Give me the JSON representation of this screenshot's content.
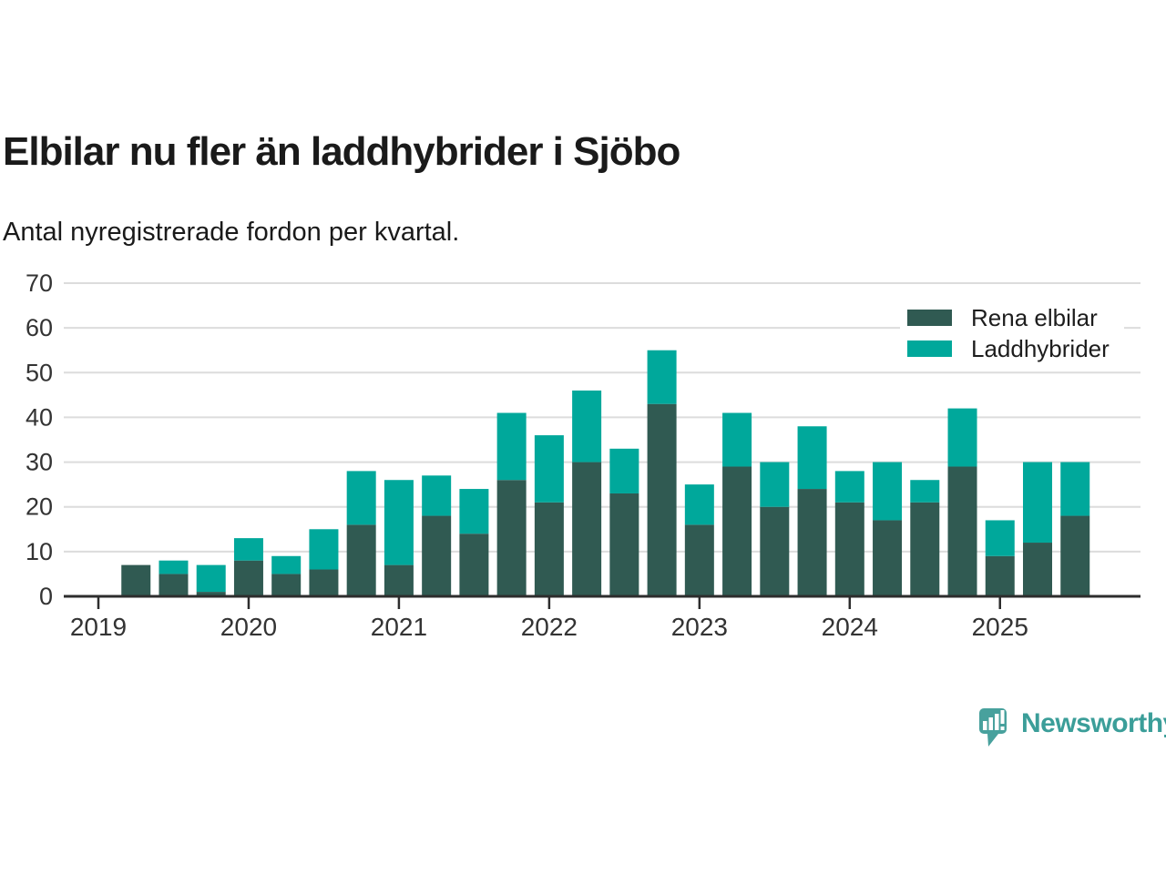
{
  "header": {
    "title": "Elbilar nu fler än laddhybrider i Sjöbo",
    "subtitle": "Antal nyregistrerade fordon per kvartal."
  },
  "legend": {
    "items": [
      {
        "label": "Rena elbilar",
        "color": "#305A52"
      },
      {
        "label": "Laddhybrider",
        "color": "#00A89B"
      }
    ]
  },
  "footer": {
    "brand": "Newsworthy",
    "logo_icon": "newsworthy-speech-bubble-chart-icon",
    "brand_color": "#3B9E99",
    "logo_color": "#48A19D"
  },
  "chart_data": {
    "type": "bar",
    "stacked": true,
    "title": "Elbilar nu fler än laddhybrider i Sjöbo",
    "subtitle": "Antal nyregistrerade fordon per kvartal.",
    "categories": [
      "2019 Q2",
      "2019 Q3",
      "2019 Q4",
      "2020 Q1",
      "2020 Q2",
      "2020 Q3",
      "2020 Q4",
      "2021 Q1",
      "2021 Q2",
      "2021 Q3",
      "2021 Q4",
      "2022 Q1",
      "2022 Q2",
      "2022 Q3",
      "2022 Q4",
      "2023 Q1",
      "2023 Q2",
      "2023 Q3",
      "2023 Q4",
      "2024 Q1",
      "2024 Q2",
      "2024 Q3",
      "2024 Q4",
      "2025 Q1",
      "2025 Q2",
      "2025 Q3"
    ],
    "series": [
      {
        "name": "Rena elbilar",
        "color": "#305A52",
        "values": [
          7,
          5,
          1,
          8,
          5,
          6,
          16,
          7,
          18,
          14,
          26,
          21,
          30,
          23,
          43,
          16,
          29,
          20,
          24,
          21,
          17,
          21,
          29,
          9,
          12,
          18
        ]
      },
      {
        "name": "Laddhybrider",
        "color": "#00A89B",
        "values": [
          0,
          3,
          6,
          5,
          4,
          9,
          12,
          19,
          9,
          10,
          15,
          15,
          16,
          10,
          12,
          9,
          12,
          10,
          14,
          7,
          13,
          5,
          13,
          8,
          18,
          12
        ]
      }
    ],
    "totals": [
      7,
      8,
      7,
      13,
      9,
      15,
      28,
      26,
      27,
      24,
      41,
      36,
      46,
      33,
      55,
      25,
      41,
      30,
      38,
      28,
      30,
      26,
      42,
      17,
      30,
      30
    ],
    "x_tick_labels": [
      "2019",
      "2020",
      "2021",
      "2022",
      "2023",
      "2024",
      "2025"
    ],
    "y_ticks": [
      0,
      10,
      20,
      30,
      40,
      50,
      60,
      70
    ],
    "ylim": [
      0,
      70
    ],
    "grid": "horizontal",
    "legend_position": "top-right",
    "colors": {
      "grid": "#DCDCDC",
      "axis": "#2D2D2D",
      "tick_label": "#333333"
    }
  }
}
